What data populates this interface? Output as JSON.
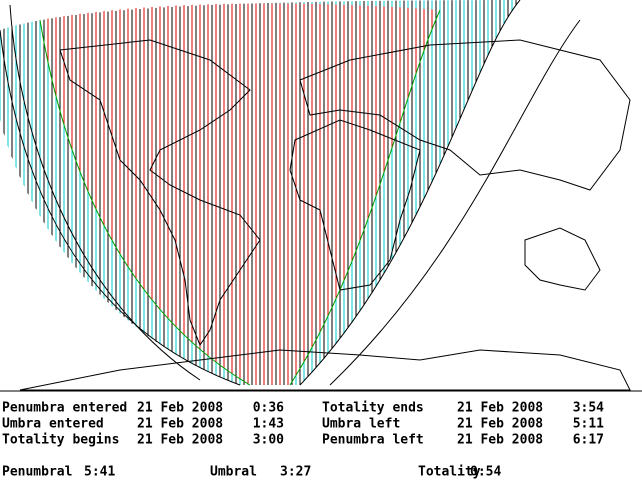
{
  "events": [
    {
      "label": "Penumbra entered",
      "date": "21 Feb 2008",
      "time": "0:36"
    },
    {
      "label": "Umbra entered",
      "date": "21 Feb 2008",
      "time": "1:43"
    },
    {
      "label": "Totality begins",
      "date": "21 Feb 2008",
      "time": "3:00"
    },
    {
      "label": "Totality ends",
      "date": "21 Feb 2008",
      "time": "3:54"
    },
    {
      "label": "Umbra left",
      "date": "21 Feb 2008",
      "time": "5:11"
    },
    {
      "label": "Penumbra left",
      "date": "21 Feb 2008",
      "time": "6:17"
    }
  ],
  "durations": [
    {
      "label": "Penumbral",
      "value": "5:41"
    },
    {
      "label": "Umbral",
      "value": "3:27"
    },
    {
      "label": "Totality",
      "value": "0:54"
    }
  ]
}
